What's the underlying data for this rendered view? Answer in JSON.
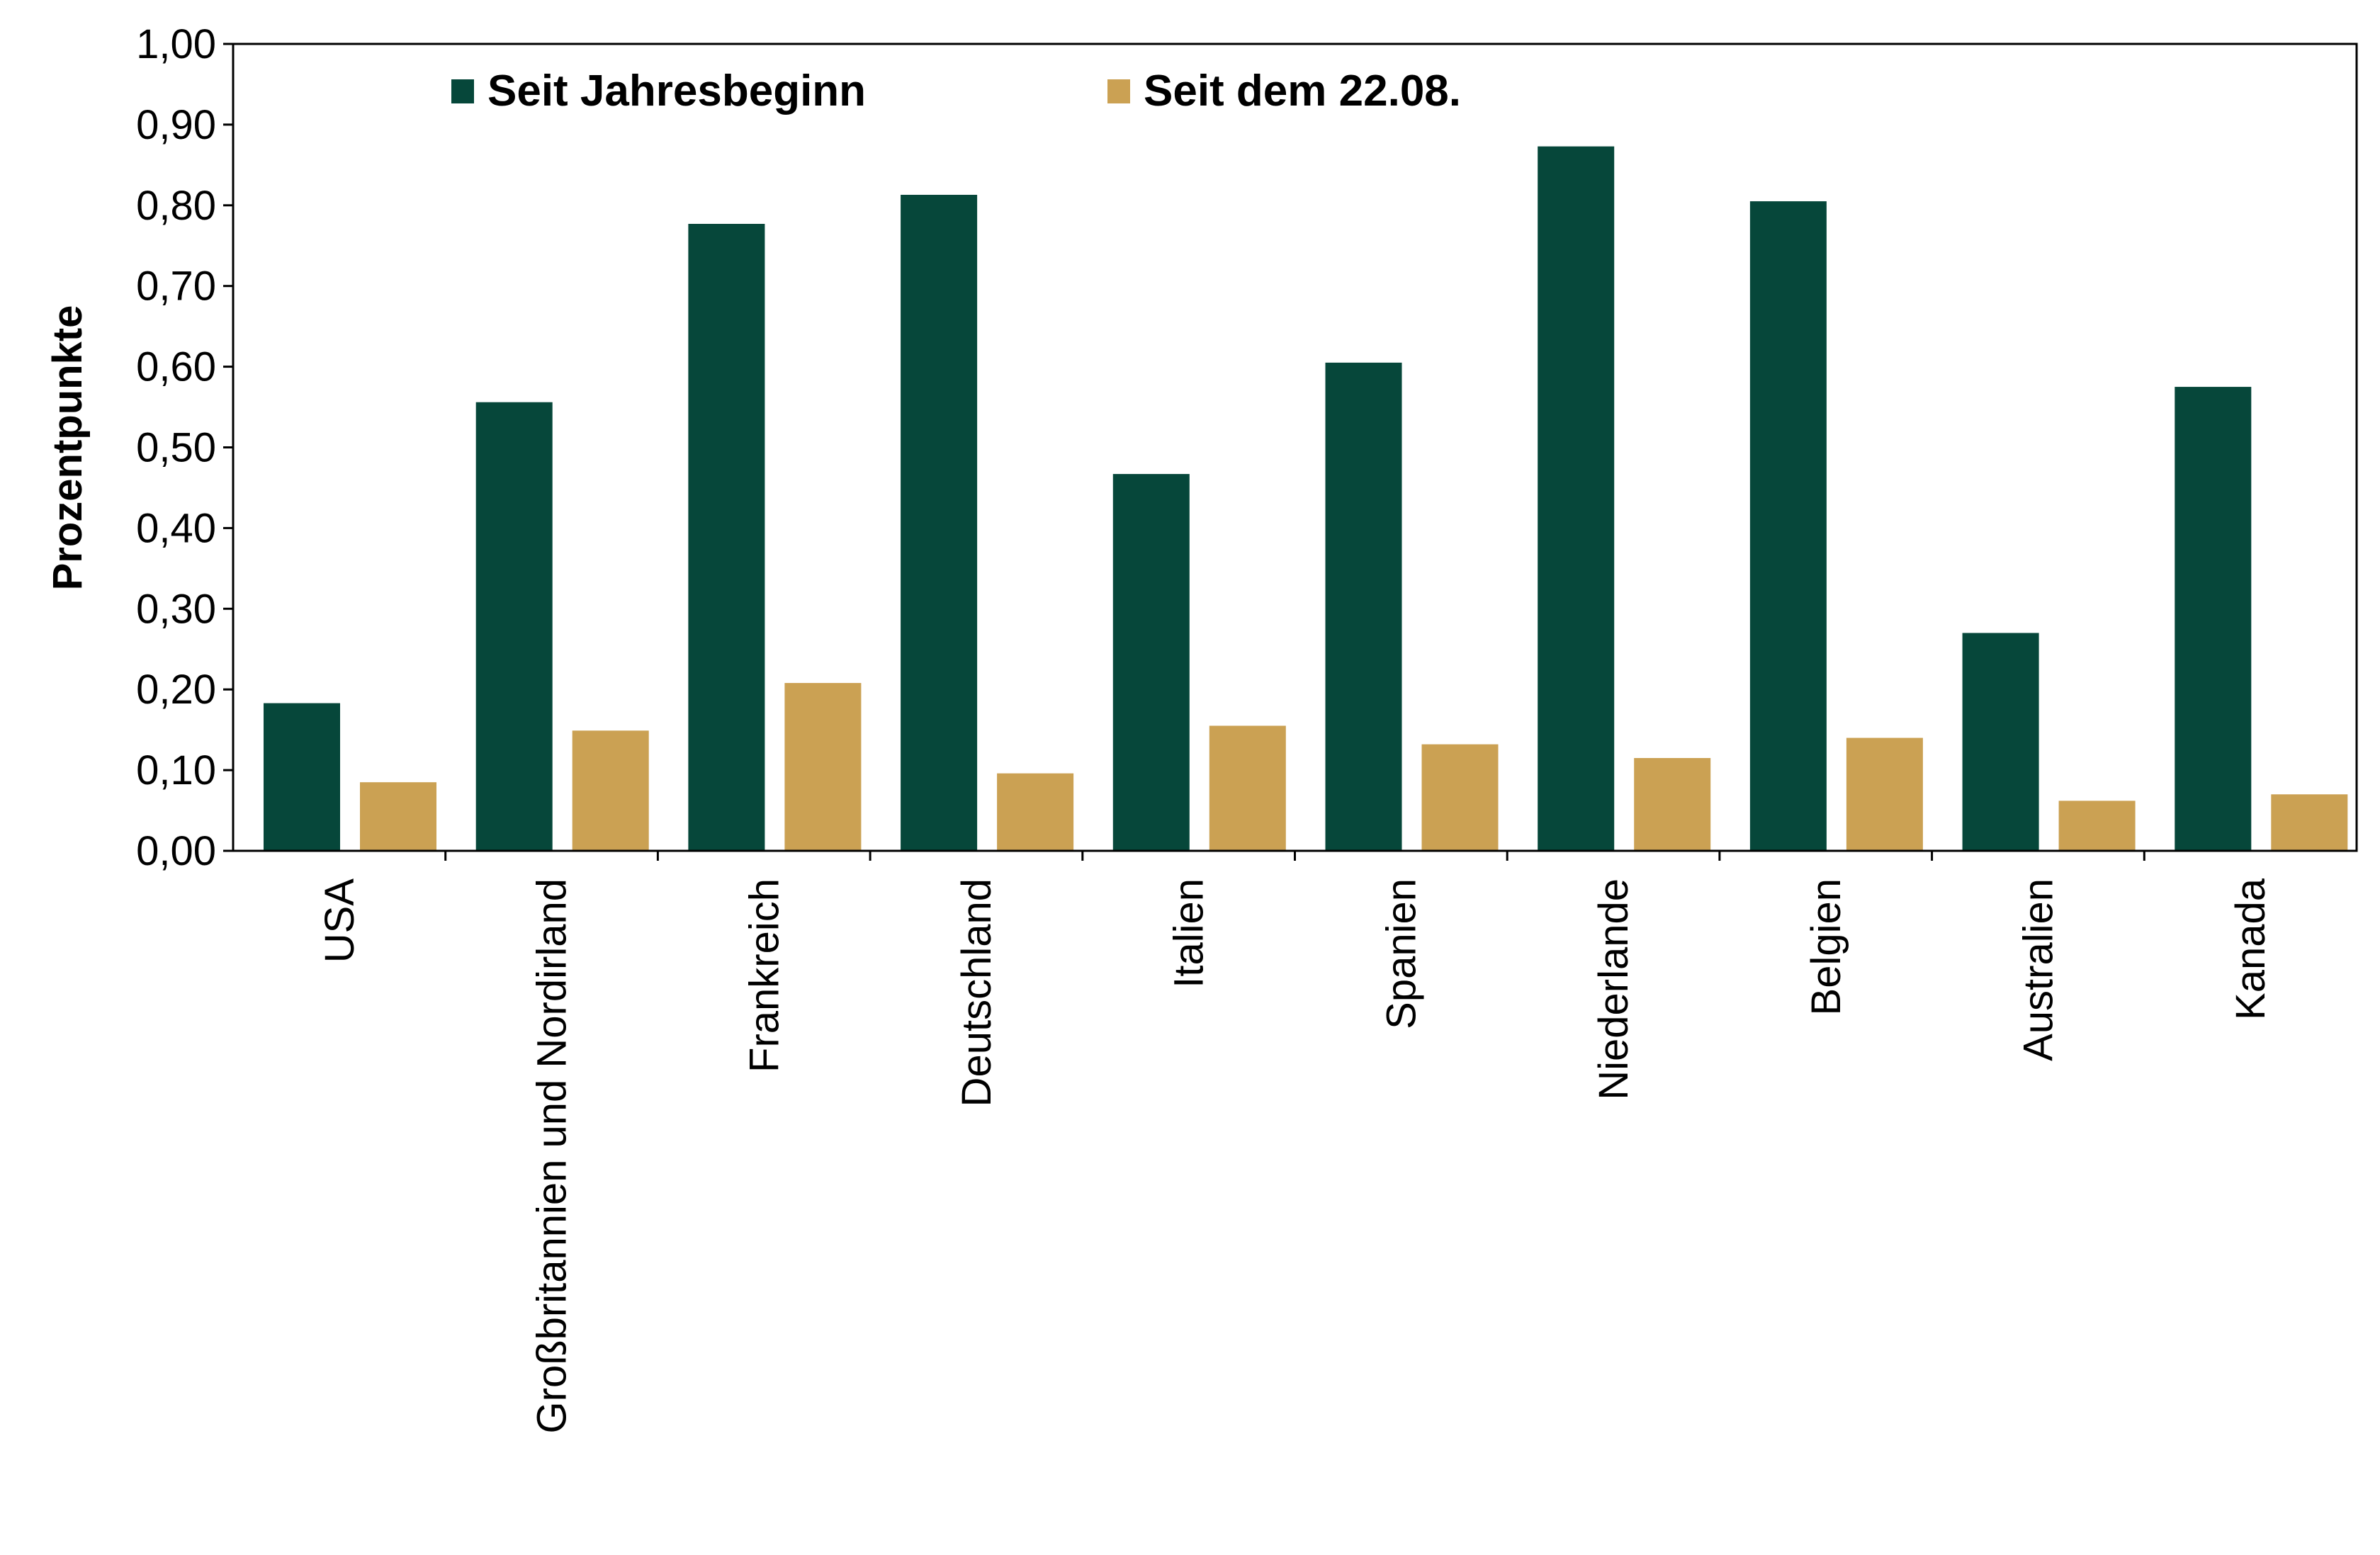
{
  "chart_data": {
    "type": "bar",
    "title": "",
    "xlabel": "",
    "ylabel": "Prozentpunkte",
    "ylim": [
      0,
      1.0
    ],
    "yticks": [
      "0,00",
      "0,10",
      "0,20",
      "0,30",
      "0,40",
      "0,50",
      "0,60",
      "0,70",
      "0,80",
      "0,90",
      "1,00"
    ],
    "legend_position": "top",
    "categories": [
      "USA",
      "Großbritannien und Nordirland",
      "Frankreich",
      "Deutschland",
      "Italien",
      "Spanien",
      "Niederlande",
      "Belgien",
      "Australien",
      "Kanada"
    ],
    "series": [
      {
        "name": "Seit Jahresbeginn",
        "color": "#06473a",
        "values": [
          0.183,
          0.556,
          0.777,
          0.813,
          0.467,
          0.605,
          0.873,
          0.805,
          0.27,
          0.575
        ]
      },
      {
        "name": "Seit dem 22.08.",
        "color": "#cba153",
        "values": [
          0.085,
          0.149,
          0.208,
          0.096,
          0.155,
          0.132,
          0.115,
          0.14,
          0.062,
          0.07
        ]
      }
    ]
  }
}
